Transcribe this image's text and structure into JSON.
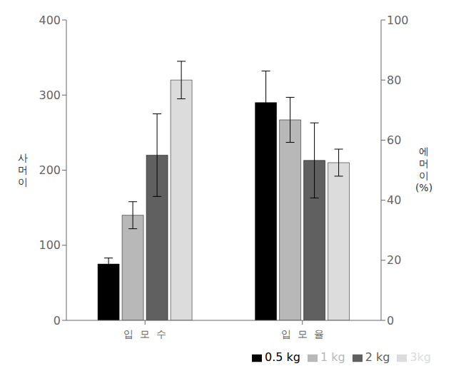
{
  "chart_data": {
    "type": "bar",
    "categories": [
      "입  모  수",
      "입  모  율"
    ],
    "series": [
      {
        "name": "0.5 kg",
        "color": "#000000",
        "values": [
          75,
          290
        ],
        "errors": [
          8,
          42
        ]
      },
      {
        "name": "1 kg",
        "color": "#b8b8b8",
        "values": [
          140,
          267
        ],
        "errors": [
          18,
          30
        ]
      },
      {
        "name": "2 kg",
        "color": "#606060",
        "values": [
          220,
          213
        ],
        "errors": [
          55,
          50
        ]
      },
      {
        "name": "3kg",
        "color": "#dcdcdc",
        "values": [
          320,
          210
        ],
        "errors": [
          25,
          18
        ]
      }
    ],
    "ylabel": "사\n머\n이",
    "y2label": "에\n머\n이\n(%)",
    "ylim": [
      0,
      400
    ],
    "yticks": [
      0,
      100,
      200,
      300,
      400
    ],
    "y2lim": [
      0,
      100
    ],
    "y2ticks": [
      0,
      20,
      40,
      60,
      80,
      100
    ],
    "legend": "lower right",
    "grid": false
  }
}
